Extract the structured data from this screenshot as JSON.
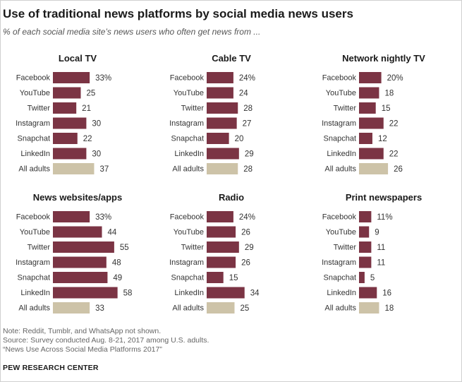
{
  "title": "Use of traditional news platforms by social media news users",
  "subtitle": "% of each social media site’s news users who often get news from ...",
  "colors": {
    "bar": "#7b3444",
    "all_adults_bar": "#cdc3a8"
  },
  "chart_data": [
    {
      "type": "bar",
      "orientation": "horizontal",
      "title": "Local TV",
      "categories": [
        "Facebook",
        "YouTube",
        "Twitter",
        "Instagram",
        "Snapchat",
        "LinkedIn",
        "All adults"
      ],
      "values": [
        33,
        25,
        21,
        30,
        22,
        30,
        37
      ],
      "labels": [
        "33%",
        "25",
        "21",
        "30",
        "22",
        "30",
        "37"
      ]
    },
    {
      "type": "bar",
      "orientation": "horizontal",
      "title": "Cable TV",
      "categories": [
        "Facebook",
        "YouTube",
        "Twitter",
        "Instagram",
        "Snapchat",
        "LinkedIn",
        "All adults"
      ],
      "values": [
        24,
        24,
        28,
        27,
        20,
        29,
        28
      ],
      "labels": [
        "24%",
        "24",
        "28",
        "27",
        "20",
        "29",
        "28"
      ]
    },
    {
      "type": "bar",
      "orientation": "horizontal",
      "title": "Network nightly TV",
      "categories": [
        "Facebook",
        "YouTube",
        "Twitter",
        "Instagram",
        "Snapchat",
        "LinkedIn",
        "All adults"
      ],
      "values": [
        20,
        18,
        15,
        22,
        12,
        22,
        26
      ],
      "labels": [
        "20%",
        "18",
        "15",
        "22",
        "12",
        "22",
        "26"
      ]
    },
    {
      "type": "bar",
      "orientation": "horizontal",
      "title": "News websites/apps",
      "categories": [
        "Facebook",
        "YouTube",
        "Twitter",
        "Instagram",
        "Snapchat",
        "LinkedIn",
        "All adults"
      ],
      "values": [
        33,
        44,
        55,
        48,
        49,
        58,
        33
      ],
      "labels": [
        "33%",
        "44",
        "55",
        "48",
        "49",
        "58",
        "33"
      ]
    },
    {
      "type": "bar",
      "orientation": "horizontal",
      "title": "Radio",
      "categories": [
        "Facebook",
        "YouTube",
        "Twitter",
        "Instagram",
        "Snapchat",
        "LinkedIn",
        "All adults"
      ],
      "values": [
        24,
        26,
        29,
        26,
        15,
        34,
        25
      ],
      "labels": [
        "24%",
        "26",
        "29",
        "26",
        "15",
        "34",
        "25"
      ]
    },
    {
      "type": "bar",
      "orientation": "horizontal",
      "title": "Print newspapers",
      "categories": [
        "Facebook",
        "YouTube",
        "Twitter",
        "Instagram",
        "Snapchat",
        "LinkedIn",
        "All adults"
      ],
      "values": [
        11,
        9,
        11,
        11,
        5,
        16,
        18
      ],
      "labels": [
        "11%",
        "9",
        "11",
        "11",
        "5",
        "16",
        "18"
      ]
    }
  ],
  "footer": {
    "note": "Note: Reddit, Tumblr, and WhatsApp not shown.",
    "source": "Source: Survey conducted Aug. 8-21, 2017 among U.S. adults.",
    "report": "“News Use Across Social Media Platforms 2017”",
    "brand": "PEW RESEARCH CENTER"
  }
}
